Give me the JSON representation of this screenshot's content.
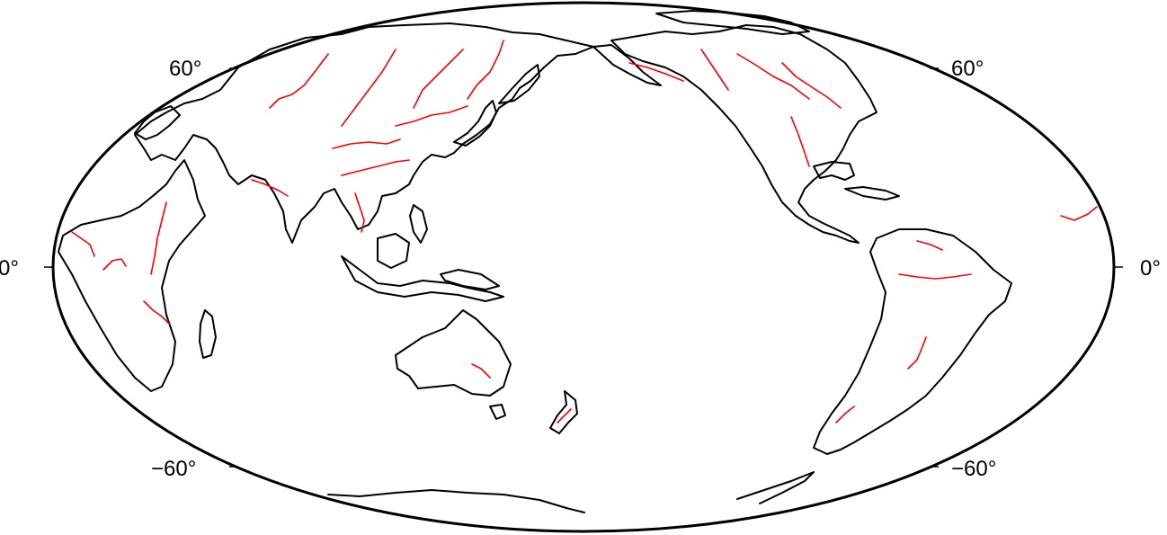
{
  "map": {
    "projection": "Mollweide",
    "center_longitude": 180,
    "colors": {
      "coastline": "#000000",
      "rivers": "#ff0000",
      "frame": "#000000",
      "background": "#ffffff"
    },
    "latitude_labels": {
      "left_north": "60°",
      "right_north": "60°",
      "left_equator": "0°",
      "right_equator": "0°",
      "left_south": "−60°",
      "right_south": "−60°"
    },
    "layers": [
      "coastlines",
      "rivers"
    ]
  }
}
